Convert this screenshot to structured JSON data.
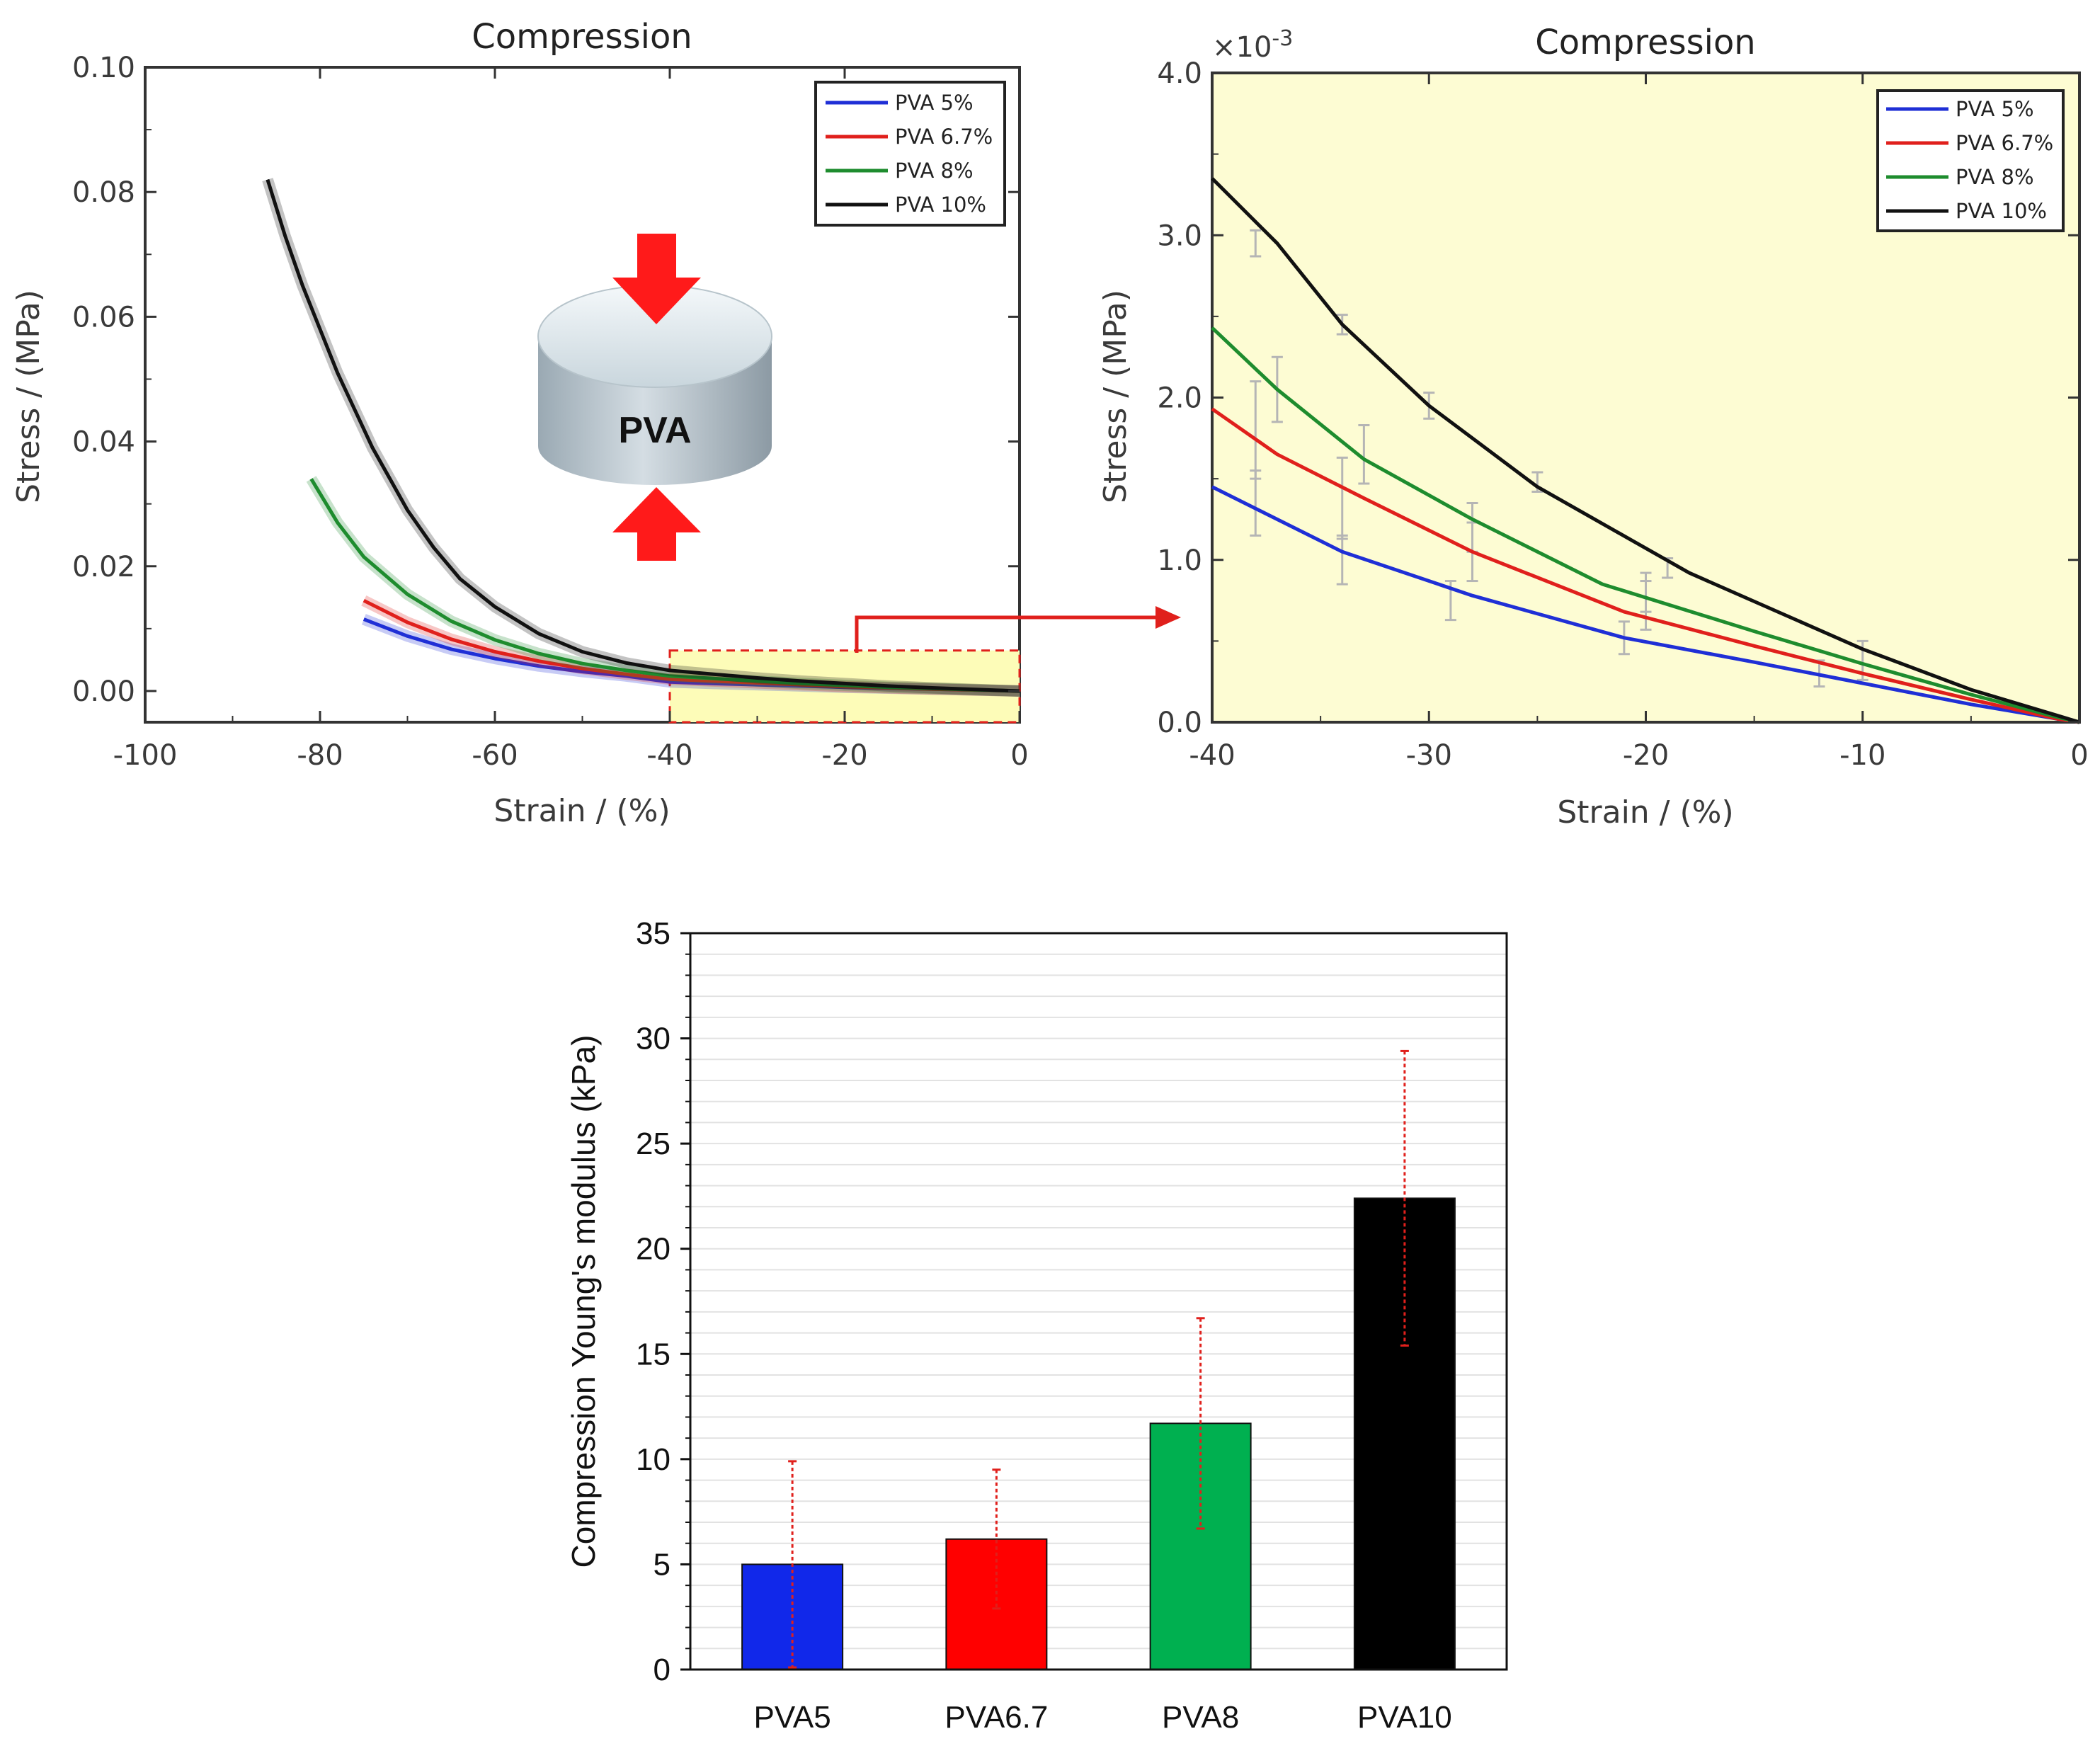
{
  "chart_data": [
    {
      "id": "left",
      "type": "line",
      "title": "Compression",
      "xlabel": "Strain / (%)",
      "ylabel": "Stress / (MPa)",
      "xlim": [
        -100,
        0
      ],
      "ylim": [
        -0.005,
        0.1
      ],
      "xticks": [
        -100,
        -80,
        -60,
        -40,
        -20,
        0
      ],
      "xtick_labels": [
        "-100",
        "-80",
        "-60",
        "-40",
        "-20",
        "0"
      ],
      "yticks": [
        0,
        0.02,
        0.04,
        0.06,
        0.08,
        0.1
      ],
      "ytick_labels": [
        "0.00",
        "0.02",
        "0.04",
        "0.06",
        "0.08",
        "0.10"
      ],
      "inset_label": "PVA",
      "zoom_region": {
        "x": [
          -40,
          0
        ],
        "y": [
          -0.005,
          0.0065
        ]
      },
      "series": [
        {
          "name": "PVA 5%",
          "color": "#1f2fd6",
          "x": [
            -75,
            -70,
            -65,
            -60,
            -55,
            -50,
            -45,
            -40,
            -35,
            -30,
            -25,
            -20,
            -15,
            -10,
            -5,
            0
          ],
          "y": [
            0.0115,
            0.0088,
            0.0067,
            0.0052,
            0.004,
            0.0031,
            0.0024,
            0.00145,
            0.0012,
            0.001,
            0.0008,
            0.0006,
            0.00045,
            0.0003,
            0.00015,
            0
          ]
        },
        {
          "name": "PVA 6.7%",
          "color": "#e0201c",
          "x": [
            -75,
            -70,
            -65,
            -60,
            -55,
            -50,
            -45,
            -40,
            -35,
            -30,
            -25,
            -20,
            -15,
            -10,
            -5,
            0
          ],
          "y": [
            0.0145,
            0.011,
            0.0083,
            0.0063,
            0.0048,
            0.0036,
            0.0027,
            0.0019,
            0.0016,
            0.0013,
            0.001,
            0.0007,
            0.0005,
            0.0003,
            0.00015,
            0
          ]
        },
        {
          "name": "PVA 8%",
          "color": "#1e8c2e",
          "x": [
            -81,
            -78,
            -75,
            -70,
            -65,
            -60,
            -55,
            -50,
            -45,
            -40,
            -35,
            -30,
            -25,
            -20,
            -15,
            -10,
            -5,
            0
          ],
          "y": [
            0.034,
            0.027,
            0.0215,
            0.0155,
            0.0112,
            0.0082,
            0.006,
            0.0044,
            0.0033,
            0.0024,
            0.002,
            0.0016,
            0.0012,
            0.0009,
            0.0006,
            0.0004,
            0.0002,
            0
          ]
        },
        {
          "name": "PVA 10%",
          "color": "#111111",
          "x": [
            -86,
            -84,
            -82,
            -80,
            -78,
            -76,
            -74,
            -72,
            -70,
            -67,
            -64,
            -60,
            -55,
            -50,
            -45,
            -40,
            -35,
            -30,
            -25,
            -20,
            -15,
            -10,
            -5,
            0
          ],
          "y": [
            0.082,
            0.073,
            0.065,
            0.058,
            0.051,
            0.045,
            0.039,
            0.034,
            0.029,
            0.023,
            0.018,
            0.0135,
            0.0092,
            0.0063,
            0.0045,
            0.0033,
            0.0027,
            0.0021,
            0.0016,
            0.0012,
            0.0008,
            0.0005,
            0.00025,
            0
          ]
        }
      ]
    },
    {
      "id": "right",
      "type": "line",
      "title": "Compression",
      "xlabel": "Strain / (%)",
      "ylabel": "Stress / (MPa)",
      "multiplier": "×10",
      "multiplier_exp": "-3",
      "xlim": [
        -40,
        0
      ],
      "ylim": [
        0,
        4.0
      ],
      "xticks": [
        -40,
        -30,
        -20,
        -10,
        0
      ],
      "xtick_labels": [
        "-40",
        "-30",
        "-20",
        "-10",
        "0"
      ],
      "yticks": [
        0,
        1.0,
        2.0,
        3.0,
        4.0
      ],
      "ytick_labels": [
        "0.0",
        "1.0",
        "2.0",
        "3.0",
        "4.0"
      ],
      "series": [
        {
          "name": "PVA 5%",
          "color": "#1f2fd6",
          "x": [
            -40,
            -34,
            -28,
            -21,
            -15,
            -10,
            -5,
            -1,
            0
          ],
          "y": [
            1.45,
            1.05,
            0.78,
            0.52,
            0.37,
            0.24,
            0.11,
            0.02,
            0
          ]
        },
        {
          "name": "PVA 6.7%",
          "color": "#e0201c",
          "x": [
            -40,
            -37,
            -33,
            -28,
            -21,
            -15,
            -10,
            -5,
            -1,
            0
          ],
          "y": [
            1.93,
            1.65,
            1.38,
            1.05,
            0.68,
            0.47,
            0.3,
            0.14,
            0.02,
            0
          ]
        },
        {
          "name": "PVA 8%",
          "color": "#1e8c2e",
          "x": [
            -40,
            -37,
            -33,
            -28,
            -22,
            -15,
            -10,
            -5,
            -1,
            0
          ],
          "y": [
            2.43,
            2.05,
            1.62,
            1.25,
            0.85,
            0.56,
            0.36,
            0.17,
            0.03,
            0
          ]
        },
        {
          "name": "PVA 10%",
          "color": "#111111",
          "x": [
            -40,
            -37,
            -34,
            -30,
            -25,
            -18,
            -10,
            -5,
            -1,
            0
          ],
          "y": [
            3.35,
            2.95,
            2.45,
            1.95,
            1.45,
            0.92,
            0.45,
            0.2,
            0.04,
            0
          ]
        }
      ],
      "error_bars": {
        "x": [
          -38,
          -34,
          -29,
          -21,
          -12,
          -38,
          -34,
          -28,
          -20,
          -10,
          -37,
          -33,
          -28,
          -20,
          -38,
          -34,
          -30,
          -25,
          -19
        ],
        "y": [
          1.35,
          1.0,
          0.75,
          0.52,
          0.3,
          1.8,
          1.38,
          1.05,
          0.72,
          0.38,
          2.05,
          1.65,
          1.2,
          0.8,
          2.95,
          2.45,
          1.95,
          1.48,
          0.95
        ],
        "err": [
          0.2,
          0.15,
          0.12,
          0.1,
          0.08,
          0.3,
          0.25,
          0.18,
          0.15,
          0.12,
          0.2,
          0.18,
          0.15,
          0.12,
          0.08,
          0.06,
          0.08,
          0.06,
          0.06
        ]
      }
    },
    {
      "id": "bottom",
      "type": "bar",
      "title": "",
      "xlabel": "",
      "ylabel": "Compression Young's modulus (kPa)",
      "ylim": [
        0,
        35
      ],
      "yticks": [
        0,
        5,
        10,
        15,
        20,
        25,
        30,
        35
      ],
      "ytick_labels": [
        "0",
        "5",
        "10",
        "15",
        "20",
        "25",
        "30",
        "35"
      ],
      "categories": [
        "PVA5",
        "PVA6.7",
        "PVA8",
        "PVA10"
      ],
      "values": [
        5.0,
        6.2,
        11.7,
        22.4
      ],
      "errors": [
        4.9,
        3.3,
        5.0,
        7.0
      ],
      "colors": [
        "#1128ea",
        "#ff0000",
        "#00b050",
        "#000000"
      ]
    }
  ]
}
